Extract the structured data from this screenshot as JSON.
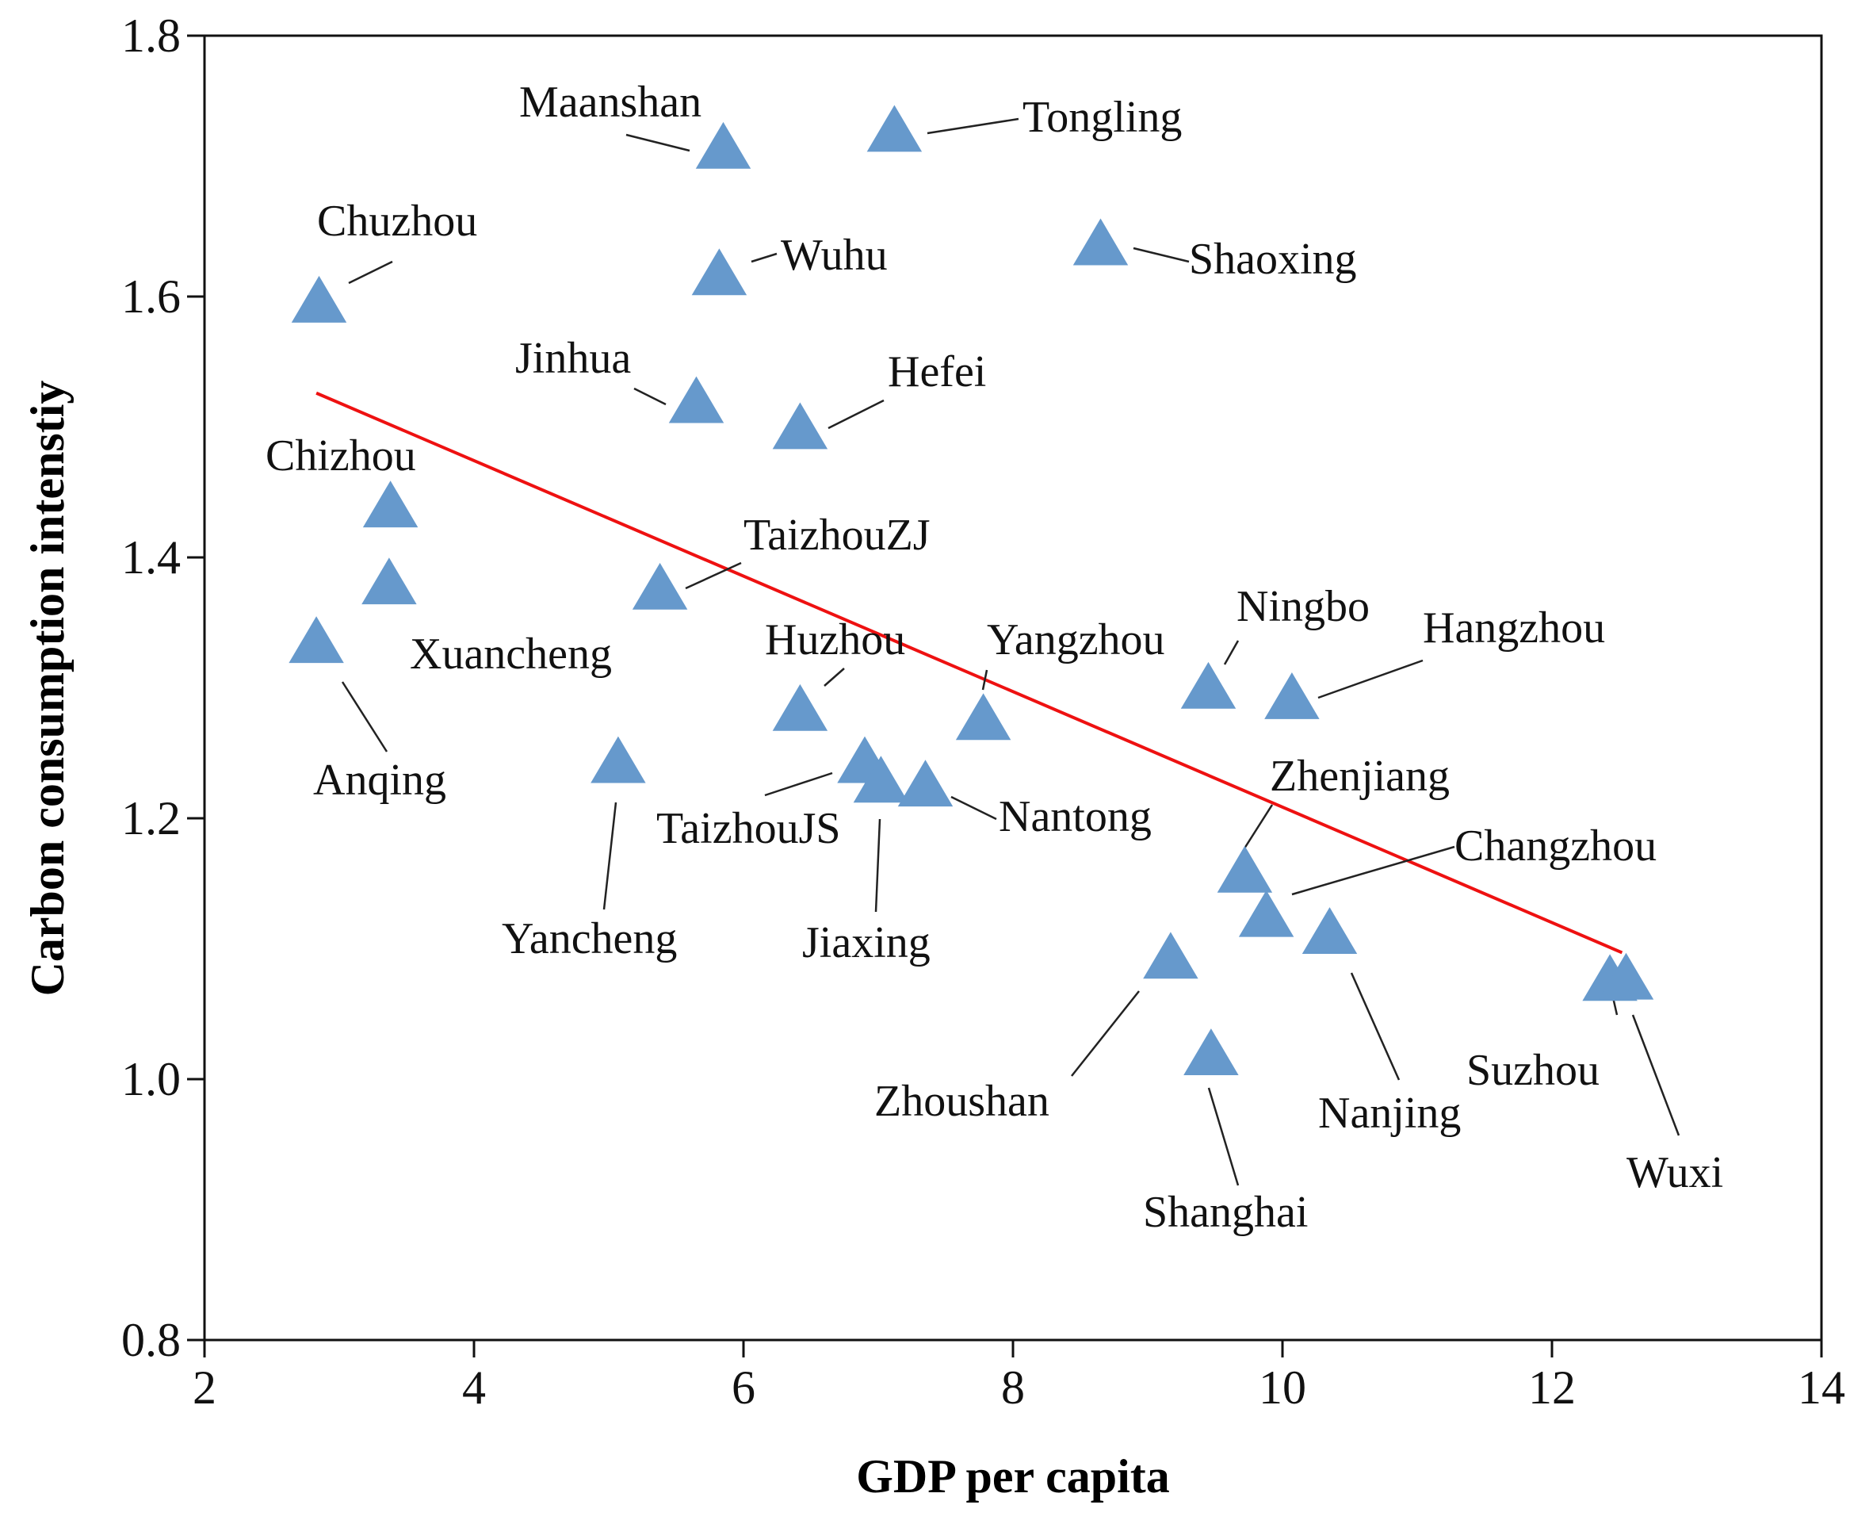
{
  "chart_data": {
    "type": "scatter",
    "title": "",
    "xlabel": "GDP per capita",
    "ylabel": "Carbon consumption intenstiy",
    "xlim": [
      2,
      14
    ],
    "ylim": [
      0.8,
      1.8
    ],
    "xticks": [
      "2",
      "4",
      "6",
      "8",
      "10",
      "12",
      "14"
    ],
    "yticks": [
      "0.8",
      "1.0",
      "1.2",
      "1.4",
      "1.6",
      "1.8"
    ],
    "grid": false,
    "marker_color": "#6699CC",
    "trend_color": "#EE1111",
    "trendline": {
      "x": [
        2.83,
        12.52
      ],
      "y": [
        1.526,
        1.097
      ]
    },
    "points": [
      {
        "name": "Maanshan",
        "x": 5.85,
        "y": 1.715
      },
      {
        "name": "Tongling",
        "x": 7.12,
        "y": 1.728
      },
      {
        "name": "Chuzhou",
        "x": 2.85,
        "y": 1.597
      },
      {
        "name": "Wuhu",
        "x": 5.82,
        "y": 1.618
      },
      {
        "name": "Shaoxing",
        "x": 8.65,
        "y": 1.641
      },
      {
        "name": "Jinhua",
        "x": 5.65,
        "y": 1.52
      },
      {
        "name": "Hefei",
        "x": 6.42,
        "y": 1.5
      },
      {
        "name": "Chizhou",
        "x": 3.38,
        "y": 1.44
      },
      {
        "name": "Xuancheng",
        "x": 3.37,
        "y": 1.381
      },
      {
        "name": "TaizhouZJ",
        "x": 5.38,
        "y": 1.377
      },
      {
        "name": "Anqing",
        "x": 2.83,
        "y": 1.336
      },
      {
        "name": "Huzhou",
        "x": 6.42,
        "y": 1.284
      },
      {
        "name": "Yangzhou",
        "x": 7.78,
        "y": 1.277
      },
      {
        "name": "Ningbo",
        "x": 9.45,
        "y": 1.301
      },
      {
        "name": "Hangzhou",
        "x": 10.07,
        "y": 1.293
      },
      {
        "name": "Yancheng",
        "x": 5.07,
        "y": 1.244
      },
      {
        "name": "TaizhouJS",
        "x": 6.9,
        "y": 1.244
      },
      {
        "name": "Jiaxing",
        "x": 7.02,
        "y": 1.229
      },
      {
        "name": "Nantong",
        "x": 7.35,
        "y": 1.226
      },
      {
        "name": "Zhenjiang",
        "x": 9.72,
        "y": 1.16
      },
      {
        "name": "Changzhou",
        "x": 9.88,
        "y": 1.126
      },
      {
        "name": "Zhoushan",
        "x": 9.17,
        "y": 1.094
      },
      {
        "name": "Nanjing",
        "x": 10.35,
        "y": 1.113
      },
      {
        "name": "Shanghai",
        "x": 9.47,
        "y": 1.02
      },
      {
        "name": "Suzhou",
        "x": 12.43,
        "y": 1.077
      },
      {
        "name": "Wuxi",
        "x": 12.55,
        "y": 1.078
      }
    ]
  }
}
